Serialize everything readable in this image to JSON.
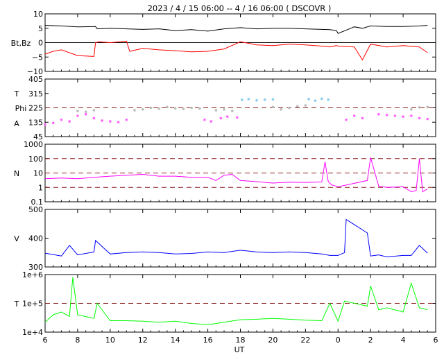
{
  "title": "2023 /  4 / 15   06:00 --  4 / 16   06:00 ( DSCOVR )",
  "xlabel": "UT",
  "x_ticks": [
    "6",
    "8",
    "10",
    "12",
    "14",
    "16",
    "18",
    "20",
    "22",
    "0",
    "2",
    "4",
    "6"
  ],
  "x_range_hours": [
    6,
    30
  ],
  "colors": {
    "bt": "#000000",
    "bz": "#ff0000",
    "theta": "#87ceeb",
    "phi": "#bbbbbb",
    "a": "#ff66ff",
    "density": "#ff00ff",
    "speed": "#0000ff",
    "temperature": "#00ff00",
    "reference_line": "#8b1a1a"
  },
  "panels": [
    {
      "id": "mag",
      "ylabels": [
        "Bt,Bz"
      ],
      "yticks": [
        "10",
        "5",
        "0",
        "−5",
        "−10"
      ],
      "ylim": [
        -10,
        10
      ]
    },
    {
      "id": "angle",
      "ylabels": [
        "T",
        "Phi",
        "A"
      ],
      "yticks": [
        "405",
        "315",
        "225",
        "135",
        "45"
      ],
      "ylim": [
        45,
        405
      ]
    },
    {
      "id": "density",
      "ylabels": [
        "N"
      ],
      "yticks": [
        "1000",
        "100",
        "10",
        "1",
        "0.1"
      ],
      "ylim": [
        0.1,
        1000
      ],
      "scale": "log"
    },
    {
      "id": "speed",
      "ylabels": [
        "V"
      ],
      "yticks": [
        "500",
        "400",
        "300"
      ],
      "ylim": [
        300,
        500
      ]
    },
    {
      "id": "temperature",
      "ylabels": [
        "T"
      ],
      "yticks": [
        "1e+6",
        "1e+5",
        "1e+4"
      ],
      "ylim": [
        10000,
        1000000
      ],
      "scale": "log"
    }
  ],
  "chart_data": [
    {
      "type": "line",
      "panel": "mag",
      "ylim": [
        -10,
        10
      ],
      "hlines": [
        0
      ],
      "series": [
        {
          "name": "Bt",
          "color": "#000000",
          "x": [
            6,
            7,
            8,
            9.1,
            9.2,
            10,
            11,
            12,
            13,
            14,
            15,
            16,
            17,
            18,
            19,
            20,
            21,
            22,
            23.5,
            23.9,
            24.0,
            25,
            25.5,
            26,
            27,
            28,
            29,
            29.5
          ],
          "y": [
            6,
            5.8,
            5.5,
            5.6,
            4.8,
            5,
            4.8,
            4.6,
            4.8,
            4.2,
            4.5,
            4,
            4.8,
            5.2,
            4.8,
            5,
            5,
            4.8,
            4.5,
            4.2,
            3.2,
            5.5,
            5,
            5.8,
            5.6,
            5.6,
            5.8,
            6
          ]
        },
        {
          "name": "Bz",
          "color": "#ff0000",
          "x": [
            6,
            6.5,
            7,
            8,
            9,
            9.1,
            9.3,
            10,
            11,
            11.2,
            12,
            13,
            14,
            15,
            16,
            17,
            18,
            19,
            20,
            21,
            22,
            23,
            23.5,
            23.9,
            24.0,
            25,
            25.5,
            26,
            27,
            28,
            29,
            29.5
          ],
          "y": [
            -4,
            -3,
            -2.5,
            -4.5,
            -4.8,
            0,
            0.3,
            0,
            0.5,
            -3,
            -2,
            -2.5,
            -2.8,
            -3.2,
            -3,
            -2.2,
            0.3,
            -0.8,
            -1,
            -0.5,
            -0.8,
            -1.2,
            -1.5,
            -1,
            -1.2,
            -1.5,
            -6,
            -0.5,
            -1.5,
            -1,
            -1.5,
            -3.5
          ]
        }
      ]
    },
    {
      "type": "scatter",
      "panel": "angle",
      "ylim": [
        45,
        405
      ],
      "hlines": [
        225
      ],
      "series": [
        {
          "name": "T",
          "color": "#87ceeb",
          "x": [
            18.1,
            18.5,
            19,
            19.5,
            20,
            22.2,
            22.6,
            23,
            23.4
          ],
          "y": [
            275,
            280,
            272,
            276,
            278,
            280,
            270,
            282,
            276
          ]
        },
        {
          "name": "Phi",
          "color": "#bbbbbb",
          "x": [
            8,
            8.5,
            9,
            11.5,
            12,
            12.5,
            13,
            13.5,
            14,
            14.5,
            15,
            15.5,
            16.5,
            17,
            17.5,
            20,
            20.5,
            21,
            21.5,
            22,
            28.5,
            29,
            29.5
          ],
          "y": [
            205,
            200,
            210,
            210,
            215,
            225,
            220,
            230,
            222,
            218,
            225,
            220,
            210,
            215,
            205,
            230,
            215,
            225,
            235,
            240,
            215,
            228,
            230
          ]
        },
        {
          "name": "A",
          "color": "#ff66ff",
          "x": [
            6,
            6.5,
            7,
            7.5,
            8,
            8.5,
            9,
            9.5,
            10,
            10.5,
            11,
            15.8,
            16.2,
            16.8,
            17.2,
            17.8,
            24.5,
            25,
            25.5,
            26.5,
            27,
            27.5,
            28,
            28.5,
            29,
            29.5
          ],
          "y": [
            120,
            130,
            150,
            140,
            175,
            185,
            160,
            145,
            140,
            135,
            150,
            150,
            140,
            160,
            170,
            165,
            150,
            175,
            160,
            185,
            180,
            175,
            170,
            175,
            160,
            155
          ]
        }
      ]
    },
    {
      "type": "line",
      "panel": "density",
      "scale": "log",
      "ylim": [
        0.1,
        1000
      ],
      "hlines": [
        1,
        10,
        100
      ],
      "series": [
        {
          "name": "N",
          "color": "#ff00ff",
          "x": [
            6,
            7,
            8,
            9,
            10,
            11,
            12,
            13,
            14,
            15,
            16,
            16.5,
            17,
            17.5,
            18,
            19,
            20,
            21,
            22,
            23,
            23.2,
            23.4,
            23.6,
            24,
            25.8,
            26,
            26.5,
            27,
            28,
            28.5,
            28.8,
            29,
            29.2,
            29.5
          ],
          "y": [
            4,
            4.5,
            4,
            5,
            6,
            7,
            8,
            6,
            6,
            5,
            5,
            3,
            7,
            8,
            3,
            2.5,
            2,
            2.3,
            2.2,
            2.4,
            60,
            2.5,
            1.5,
            1.1,
            3,
            120,
            1.2,
            1,
            1.1,
            0.5,
            0.6,
            100,
            0.5,
            0.8
          ]
        }
      ]
    },
    {
      "type": "line",
      "panel": "speed",
      "ylim": [
        300,
        500
      ],
      "series": [
        {
          "name": "V",
          "color": "#0000ff",
          "x": [
            6,
            7,
            7.5,
            8,
            9,
            9.1,
            10,
            11,
            12,
            13,
            14,
            15,
            16,
            17,
            18,
            19,
            20,
            21,
            22,
            23,
            23.5,
            24,
            24.4,
            24.5,
            25.8,
            26,
            26.5,
            27,
            28,
            28.5,
            29,
            29.5
          ],
          "y": [
            348,
            338,
            375,
            342,
            352,
            392,
            345,
            350,
            352,
            350,
            345,
            347,
            352,
            350,
            358,
            352,
            350,
            352,
            350,
            345,
            340,
            340,
            350,
            465,
            418,
            338,
            342,
            335,
            340,
            340,
            375,
            348
          ]
        }
      ]
    },
    {
      "type": "line",
      "panel": "temperature",
      "scale": "log",
      "ylim": [
        10000,
        1000000
      ],
      "hlines": [
        100000
      ],
      "series": [
        {
          "name": "T",
          "color": "#00ff00",
          "x": [
            6,
            6.5,
            7,
            7.5,
            7.7,
            8,
            9,
            9.2,
            10,
            11,
            12,
            13,
            14,
            15,
            16,
            17,
            18,
            19,
            20,
            21,
            22,
            23,
            23.5,
            24,
            24.4,
            25.8,
            26,
            26.5,
            27,
            28,
            28.5,
            29,
            29.5
          ],
          "y": [
            22000,
            40000,
            50000,
            35000,
            800000,
            40000,
            30000,
            100000,
            25000,
            25000,
            24000,
            22000,
            24000,
            20000,
            18000,
            22000,
            27000,
            28000,
            30000,
            28000,
            26000,
            25000,
            100000,
            24000,
            120000,
            80000,
            400000,
            60000,
            70000,
            50000,
            500000,
            70000,
            60000
          ]
        }
      ]
    }
  ]
}
